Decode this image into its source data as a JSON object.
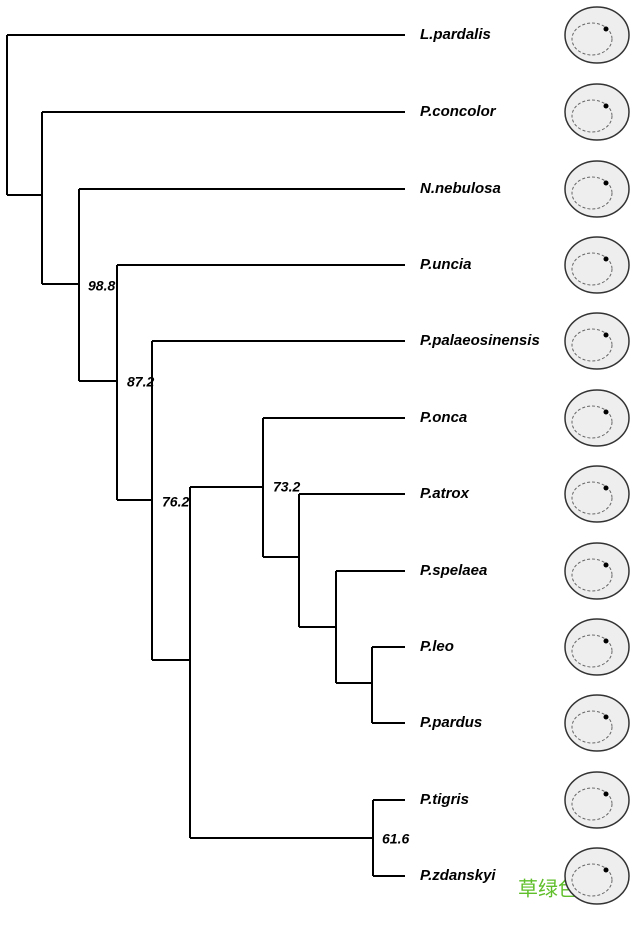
{
  "taxa": [
    "L.pardalis",
    "P.concolor",
    "N.nebulosa",
    "P.uncia",
    "P.palaeosinensis",
    "P.onca",
    "P.atrox",
    "P.spelaea",
    "P.leo",
    "P.pardus",
    "P.tigris",
    "P.zdanskyi"
  ],
  "support": [
    98.8,
    87.2,
    76.2,
    73.2,
    61.6
  ],
  "watermark": "草绿色"
}
